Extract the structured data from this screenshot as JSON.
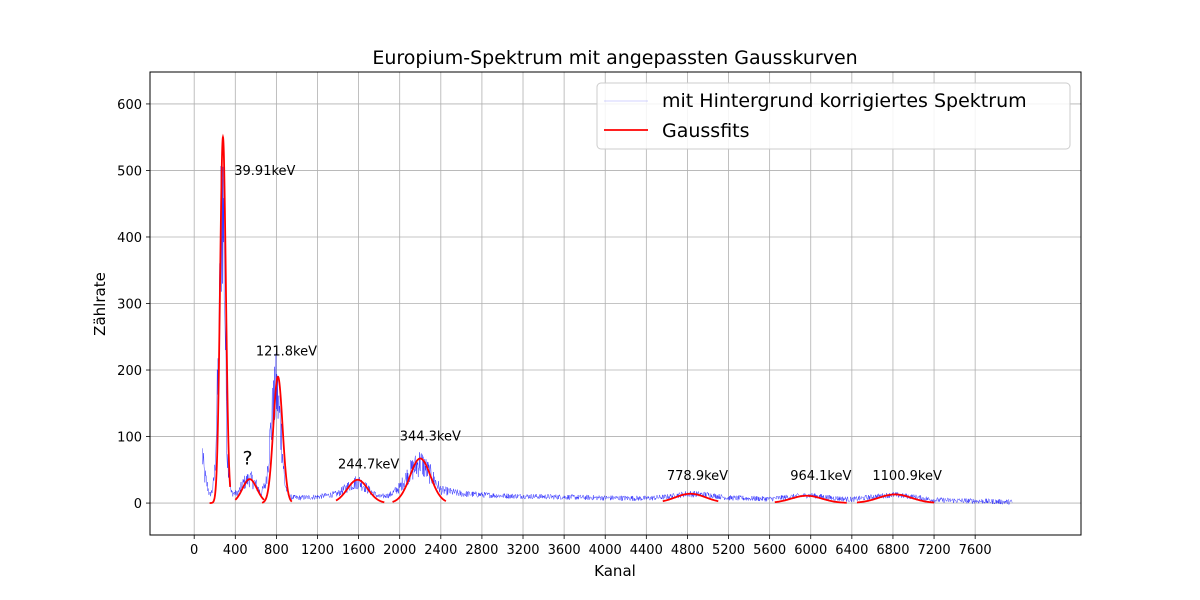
{
  "chart_data": {
    "type": "line",
    "title": "Europium-Spektrum mit angepassten Gausskurven",
    "xlabel": "Kanal",
    "ylabel": "Zählrate",
    "xlim": [
      -430,
      8630
    ],
    "ylim": [
      -48,
      648
    ],
    "x_ticks": [
      0,
      400,
      800,
      1200,
      1600,
      2000,
      2400,
      2800,
      3200,
      3600,
      4000,
      4400,
      4800,
      5200,
      5600,
      6000,
      6400,
      6800,
      7200,
      7600
    ],
    "y_ticks": [
      0,
      100,
      200,
      300,
      400,
      500,
      600
    ],
    "grid": true,
    "legend_position": "top-right",
    "colors": {
      "spectrum": "#0000ff",
      "fit": "#ff0000"
    },
    "series": [
      {
        "name": "mit Hintergrund korrigiertes Spektrum",
        "style": "thin-noisy-line",
        "color": "#0000ff",
        "x_range": [
          80,
          7960
        ],
        "envelope": [
          [
            80,
            95
          ],
          [
            100,
            55
          ],
          [
            120,
            40
          ],
          [
            150,
            15
          ],
          [
            180,
            25
          ],
          [
            200,
            60
          ],
          [
            240,
            280
          ],
          [
            260,
            520
          ],
          [
            275,
            605
          ],
          [
            290,
            500
          ],
          [
            320,
            100
          ],
          [
            360,
            20
          ],
          [
            420,
            18
          ],
          [
            480,
            38
          ],
          [
            540,
            48
          ],
          [
            600,
            36
          ],
          [
            650,
            18
          ],
          [
            700,
            40
          ],
          [
            760,
            170
          ],
          [
            800,
            220
          ],
          [
            840,
            150
          ],
          [
            880,
            40
          ],
          [
            920,
            12
          ],
          [
            1000,
            10
          ],
          [
            1200,
            12
          ],
          [
            1400,
            18
          ],
          [
            1520,
            35
          ],
          [
            1600,
            42
          ],
          [
            1700,
            25
          ],
          [
            1800,
            12
          ],
          [
            1900,
            15
          ],
          [
            2000,
            30
          ],
          [
            2100,
            60
          ],
          [
            2200,
            80
          ],
          [
            2300,
            55
          ],
          [
            2400,
            25
          ],
          [
            2600,
            18
          ],
          [
            3000,
            14
          ],
          [
            3500,
            12
          ],
          [
            4000,
            10
          ],
          [
            4400,
            9
          ],
          [
            4600,
            12
          ],
          [
            4800,
            18
          ],
          [
            5000,
            16
          ],
          [
            5200,
            10
          ],
          [
            5600,
            8
          ],
          [
            5900,
            14
          ],
          [
            6000,
            15
          ],
          [
            6200,
            10
          ],
          [
            6400,
            7
          ],
          [
            6600,
            12
          ],
          [
            6800,
            16
          ],
          [
            7000,
            12
          ],
          [
            7200,
            6
          ],
          [
            7600,
            4
          ],
          [
            7960,
            2
          ]
        ]
      },
      {
        "name": "Gaussfits",
        "style": "solid-line",
        "color": "#ff0000",
        "peaks": [
          {
            "center": 280,
            "amplitude": 550,
            "sigma": 28,
            "from": 150,
            "to": 350
          },
          {
            "center": 540,
            "amplitude": 36,
            "sigma": 70,
            "from": 400,
            "to": 680
          },
          {
            "center": 815,
            "amplitude": 190,
            "sigma": 45,
            "from": 660,
            "to": 950
          },
          {
            "center": 1590,
            "amplitude": 35,
            "sigma": 100,
            "from": 1380,
            "to": 1850
          },
          {
            "center": 2200,
            "amplitude": 67,
            "sigma": 100,
            "from": 1930,
            "to": 2450
          },
          {
            "center": 4830,
            "amplitude": 14,
            "sigma": 150,
            "from": 4560,
            "to": 5100
          },
          {
            "center": 5960,
            "amplitude": 11,
            "sigma": 150,
            "from": 5650,
            "to": 6350
          },
          {
            "center": 6820,
            "amplitude": 13,
            "sigma": 160,
            "from": 6450,
            "to": 7200
          }
        ]
      }
    ],
    "annotations": [
      {
        "text": "39.91keV",
        "x": 390,
        "y": 493
      },
      {
        "text": "?",
        "x": 470,
        "y": 58
      },
      {
        "text": "121.8keV",
        "x": 600,
        "y": 222
      },
      {
        "text": "244.7keV",
        "x": 1400,
        "y": 52
      },
      {
        "text": "344.3keV",
        "x": 2000,
        "y": 94
      },
      {
        "text": "778.9keV",
        "x": 4600,
        "y": 35
      },
      {
        "text": "964.1keV",
        "x": 5800,
        "y": 35
      },
      {
        "text": "1100.9keV",
        "x": 6600,
        "y": 35
      }
    ]
  }
}
